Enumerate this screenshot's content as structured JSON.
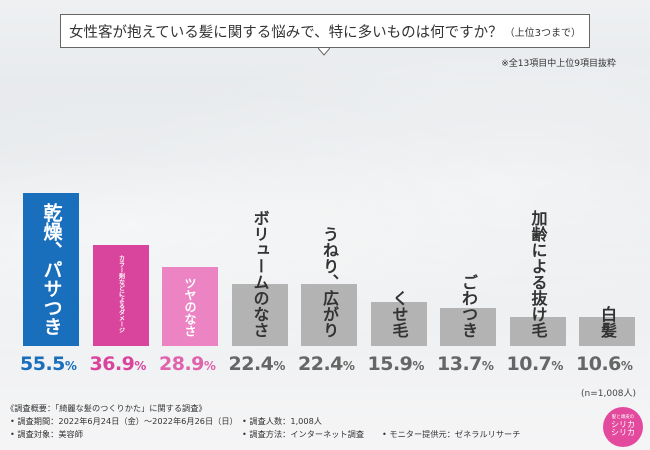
{
  "question": {
    "main": "女性客が抱えている髪に関する悩みで、特に多いものは何ですか？",
    "sub": "（上位3つまで）"
  },
  "note": "※全13項目中上位9項目抜粋",
  "colors": {
    "highlight_blue": "#1a6fbd",
    "pink_dark": "#d9449d",
    "pink_light": "#ec84c4",
    "gray": "#b3b3b3"
  },
  "chart_data": {
    "type": "bar",
    "title": "女性客が抱えている髪に関する悩みで、特に多いものは何ですか？（上位3つまで）",
    "categories": [
      "乾燥、パサつき",
      "カラー剤などによるダメージ",
      "ツヤのなさ",
      "ボリュームのなさ",
      "うねり、広がり",
      "くせ毛",
      "ごわつき",
      "加齢による抜け毛",
      "白髪"
    ],
    "values": [
      55.5,
      36.9,
      28.9,
      22.4,
      22.4,
      15.9,
      13.7,
      10.7,
      10.6
    ],
    "value_labels": [
      {
        "main": "55.5",
        "unit": "%"
      },
      {
        "main": "36.9",
        "unit": "%"
      },
      {
        "main": "28.9",
        "unit": "%"
      },
      {
        "main": "22.4",
        "unit": "%"
      },
      {
        "main": "22.4",
        "unit": "%"
      },
      {
        "main": "15.9",
        "unit": "%"
      },
      {
        "main": "13.7",
        "unit": "%"
      },
      {
        "main": "10.7",
        "unit": "%"
      },
      {
        "main": "10.6",
        "unit": "%"
      }
    ],
    "unit": "%",
    "ylim": [
      0,
      60
    ],
    "xlabel": "",
    "ylabel": "",
    "bar_colors": [
      "#1a6fbd",
      "#d9449d",
      "#ec84c4",
      "#b3b3b3",
      "#b3b3b3",
      "#b3b3b3",
      "#b3b3b3",
      "#b3b3b3",
      "#b3b3b3"
    ],
    "label_colors": [
      "#ffffff",
      "#ffffff",
      "#ffffff",
      "#333333",
      "#333333",
      "#333333",
      "#333333",
      "#333333",
      "#333333"
    ],
    "value_colors": [
      "#1a6fbd",
      "#d9449d",
      "#e063ad",
      "#666666",
      "#666666",
      "#666666",
      "#666666",
      "#666666",
      "#666666"
    ]
  },
  "sample_note": "(n=1,008人)",
  "footer": {
    "title": "《調査概要：「綺麗な髪のつくりかた」に関する調査》",
    "period": "• 調査期間：2022年6月24日（金）〜2022年6月26日（日）",
    "target": "• 調査対象：美容師",
    "count": "• 調査人数：1,008人",
    "method": "• 調査方法：インターネット調査",
    "provider": "• モニター提供元：ゼネラルリサーチ"
  },
  "logo": {
    "small": "髪と頭皮の",
    "line1": "シリカ",
    "line2": "シリカ"
  }
}
